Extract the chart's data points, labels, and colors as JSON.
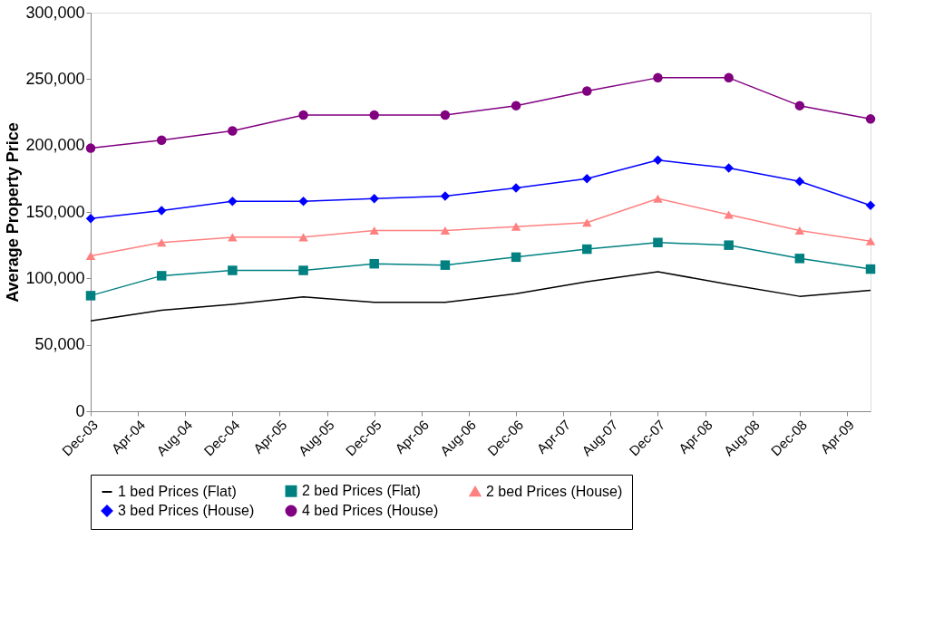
{
  "chart_data": {
    "type": "line",
    "ylabel": "Average Property Price",
    "x": [
      "2003-12",
      "2004-06",
      "2004-12",
      "2005-06",
      "2005-12",
      "2006-06",
      "2006-12",
      "2007-06",
      "2007-12",
      "2008-06",
      "2008-12",
      "2009-06"
    ],
    "xlim": [
      "2003-12",
      "2009-06"
    ],
    "xticks": [
      {
        "value": "2003-12",
        "label": "Dec-03"
      },
      {
        "value": "2004-04",
        "label": "Apr-04"
      },
      {
        "value": "2004-08",
        "label": "Aug-04"
      },
      {
        "value": "2004-12",
        "label": "Dec-04"
      },
      {
        "value": "2005-04",
        "label": "Apr-05"
      },
      {
        "value": "2005-08",
        "label": "Aug-05"
      },
      {
        "value": "2005-12",
        "label": "Dec-05"
      },
      {
        "value": "2006-04",
        "label": "Apr-06"
      },
      {
        "value": "2006-08",
        "label": "Aug-06"
      },
      {
        "value": "2006-12",
        "label": "Dec-06"
      },
      {
        "value": "2007-04",
        "label": "Apr-07"
      },
      {
        "value": "2007-08",
        "label": "Aug-07"
      },
      {
        "value": "2007-12",
        "label": "Dec-07"
      },
      {
        "value": "2008-04",
        "label": "Apr-08"
      },
      {
        "value": "2008-08",
        "label": "Aug-08"
      },
      {
        "value": "2008-12",
        "label": "Dec-08"
      },
      {
        "value": "2009-04",
        "label": "Apr-09"
      }
    ],
    "ylim": [
      0,
      300000
    ],
    "yticks": [
      0,
      {
        "value": 50000,
        "label": "50,000"
      },
      {
        "value": 100000,
        "label": "100,000"
      },
      {
        "value": 150000,
        "label": "150,000"
      },
      {
        "value": 200000,
        "label": "200,000"
      },
      {
        "value": 250000,
        "label": "250,000"
      },
      {
        "value": 300000,
        "label": "300,000"
      }
    ],
    "grid": false,
    "legend": "bottom",
    "line_style": "solid",
    "series": [
      {
        "name": "1 bed Prices (Flat)",
        "color": "#000000",
        "marker": "none",
        "values": [
          68000,
          76000,
          80500,
          86000,
          82000,
          82000,
          88500,
          97500,
          105000,
          95500,
          86500,
          91000
        ]
      },
      {
        "name": "2 bed Prices (Flat)",
        "color": "#008080",
        "marker": "square",
        "values": [
          87000,
          102000,
          106000,
          106000,
          111000,
          110000,
          116000,
          122000,
          127000,
          125000,
          115000,
          107000
        ]
      },
      {
        "name": "2 bed Prices (House)",
        "color": "#ff8080",
        "marker": "triangle",
        "values": [
          117000,
          127000,
          131000,
          131000,
          136000,
          136000,
          139000,
          142000,
          160000,
          148000,
          136000,
          128000
        ]
      },
      {
        "name": "3 bed Prices (House)",
        "color": "#0000ff",
        "marker": "diamond",
        "values": [
          145000,
          151000,
          158000,
          158000,
          160000,
          162000,
          168000,
          175000,
          189000,
          183000,
          173000,
          155000
        ]
      },
      {
        "name": "4 bed Prices (House)",
        "color": "#800080",
        "marker": "circle",
        "values": [
          198000,
          204000,
          211000,
          223000,
          223000,
          223000,
          230000,
          241000,
          251000,
          251000,
          230000,
          220000
        ]
      }
    ]
  }
}
